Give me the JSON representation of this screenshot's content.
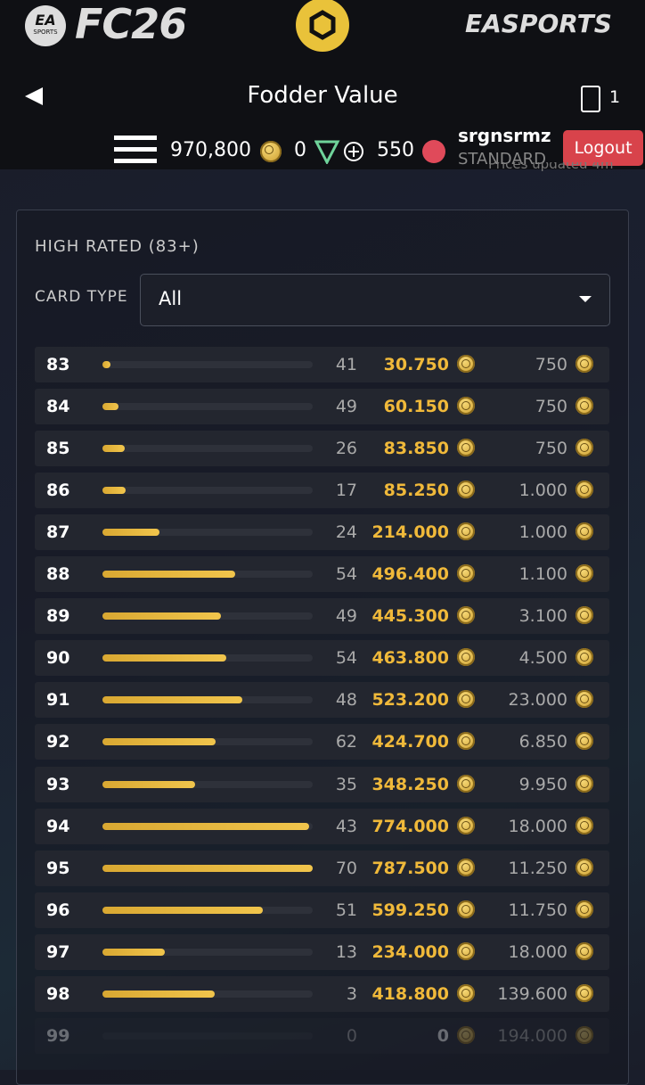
{
  "header": {
    "logo_badge_top": "EA",
    "logo_badge_bottom": "SPORTS",
    "logo": "FC26",
    "brand": "EASPORTS"
  },
  "nav": {
    "title": "Fodder Value",
    "card_count": "1"
  },
  "wallet": {
    "coins": "970,800",
    "points": "0",
    "fp": "550",
    "username": "srgnsrmz",
    "tier": "STANDARD",
    "logout": "Logout",
    "prices_note": "Prices updated 4m"
  },
  "panel": {
    "title": "HIGH RATED (83+)",
    "filter_label": "CARD TYPE",
    "filter_value": "All",
    "rows": [
      {
        "rating": 83,
        "count": 41,
        "price": {
          "value": 30750,
          "label": "30.750"
        },
        "min_price": "750"
      },
      {
        "rating": 84,
        "count": 49,
        "price": {
          "value": 60150,
          "label": "60.150"
        },
        "min_price": "750"
      },
      {
        "rating": 85,
        "count": 26,
        "price": {
          "value": 83850,
          "label": "83.850"
        },
        "min_price": "750"
      },
      {
        "rating": 86,
        "count": 17,
        "price": {
          "value": 85250,
          "label": "85.250"
        },
        "min_price": "1.000"
      },
      {
        "rating": 87,
        "count": 24,
        "price": {
          "value": 214000,
          "label": "214.000"
        },
        "min_price": "1.000"
      },
      {
        "rating": 88,
        "count": 54,
        "price": {
          "value": 496400,
          "label": "496.400"
        },
        "min_price": "1.100"
      },
      {
        "rating": 89,
        "count": 49,
        "price": {
          "value": 445300,
          "label": "445.300"
        },
        "min_price": "3.100"
      },
      {
        "rating": 90,
        "count": 54,
        "price": {
          "value": 463800,
          "label": "463.800"
        },
        "min_price": "4.500"
      },
      {
        "rating": 91,
        "count": 48,
        "price": {
          "value": 523200,
          "label": "523.200"
        },
        "min_price": "23.000"
      },
      {
        "rating": 92,
        "count": 62,
        "price": {
          "value": 424700,
          "label": "424.700"
        },
        "min_price": "6.850"
      },
      {
        "rating": 93,
        "count": 35,
        "price": {
          "value": 348250,
          "label": "348.250"
        },
        "min_price": "9.950"
      },
      {
        "rating": 94,
        "count": 43,
        "price": {
          "value": 774000,
          "label": "774.000"
        },
        "min_price": "18.000"
      },
      {
        "rating": 95,
        "count": 70,
        "price": {
          "value": 787500,
          "label": "787.500"
        },
        "min_price": "11.250"
      },
      {
        "rating": 96,
        "count": 51,
        "price": {
          "value": 599250,
          "label": "599.250"
        },
        "min_price": "11.750"
      },
      {
        "rating": 97,
        "count": 13,
        "price": {
          "value": 234000,
          "label": "234.000"
        },
        "min_price": "18.000"
      },
      {
        "rating": 98,
        "count": 3,
        "price": {
          "value": 418800,
          "label": "418.800"
        },
        "min_price": "139.600"
      },
      {
        "rating": 99,
        "count": 0,
        "price": {
          "value": 0,
          "label": "0"
        },
        "min_price": "194.000"
      }
    ]
  }
}
